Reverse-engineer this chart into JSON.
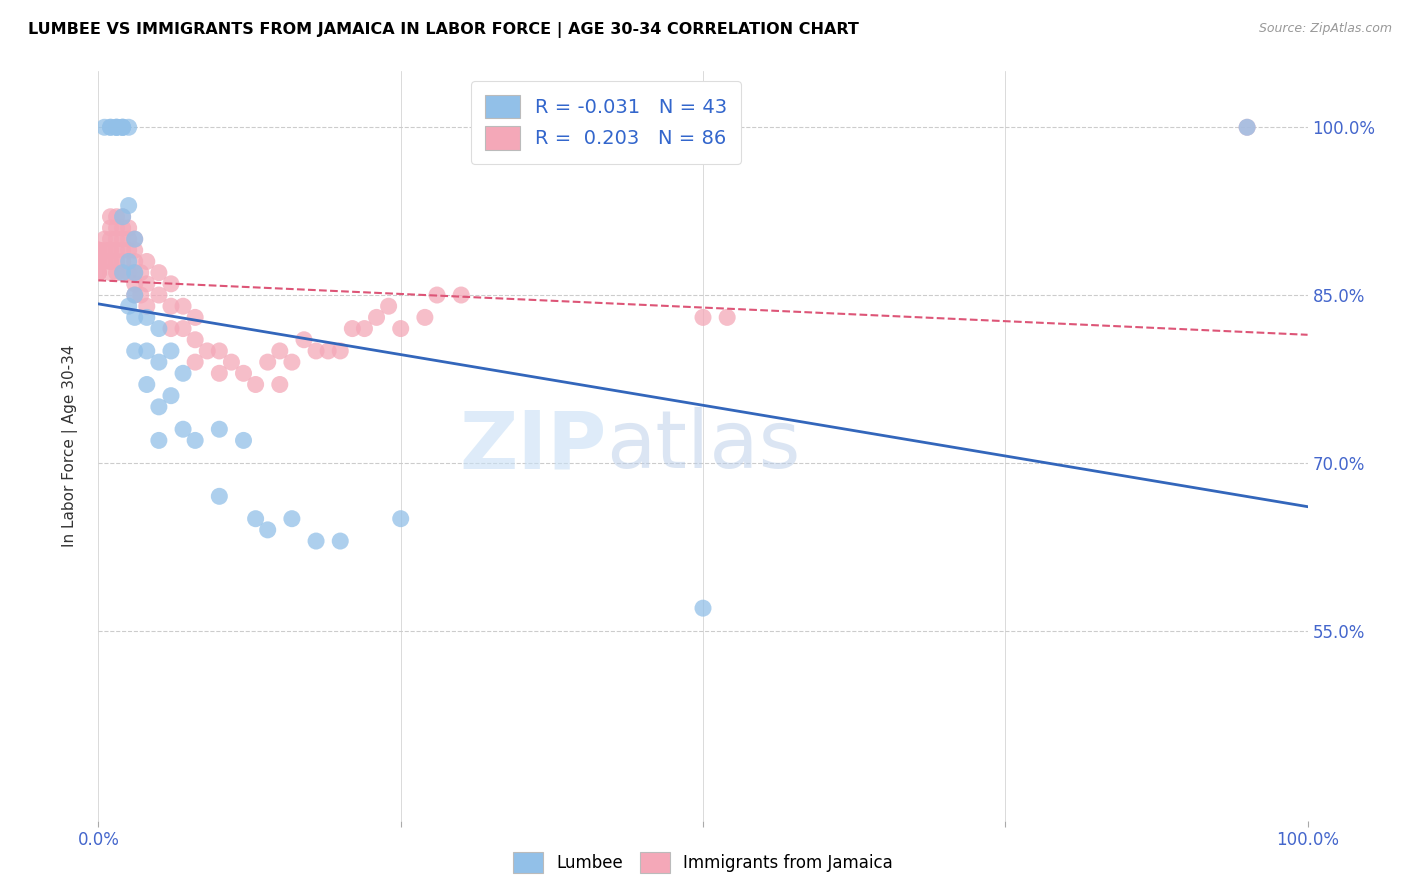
{
  "title": "LUMBEE VS IMMIGRANTS FROM JAMAICA IN LABOR FORCE | AGE 30-34 CORRELATION CHART",
  "source": "Source: ZipAtlas.com",
  "ylabel": "In Labor Force | Age 30-34",
  "ytick_labels": [
    "100.0%",
    "85.0%",
    "70.0%",
    "55.0%"
  ],
  "ytick_values": [
    1.0,
    0.85,
    0.7,
    0.55
  ],
  "xlim": [
    0.0,
    1.0
  ],
  "ylim": [
    0.38,
    1.05
  ],
  "legend_r_lumbee": "-0.031",
  "legend_n_lumbee": "43",
  "legend_r_jamaica": "0.203",
  "legend_n_jamaica": "86",
  "lumbee_color": "#92c0e8",
  "jamaica_color": "#f4a8b8",
  "lumbee_line_color": "#3366bb",
  "jamaica_line_color": "#dd5577",
  "watermark_zip": "ZIP",
  "watermark_atlas": "atlas",
  "lumbee_x": [
    0.005,
    0.01,
    0.01,
    0.015,
    0.015,
    0.015,
    0.02,
    0.02,
    0.02,
    0.02,
    0.02,
    0.025,
    0.025,
    0.025,
    0.025,
    0.03,
    0.03,
    0.03,
    0.03,
    0.03,
    0.04,
    0.04,
    0.04,
    0.05,
    0.05,
    0.05,
    0.05,
    0.06,
    0.06,
    0.07,
    0.07,
    0.08,
    0.1,
    0.1,
    0.12,
    0.13,
    0.14,
    0.16,
    0.18,
    0.2,
    0.25,
    0.5,
    0.95
  ],
  "lumbee_y": [
    1.0,
    1.0,
    1.0,
    1.0,
    1.0,
    1.0,
    1.0,
    1.0,
    1.0,
    0.92,
    0.87,
    1.0,
    0.93,
    0.88,
    0.84,
    0.9,
    0.87,
    0.85,
    0.83,
    0.8,
    0.83,
    0.8,
    0.77,
    0.82,
    0.79,
    0.75,
    0.72,
    0.8,
    0.76,
    0.78,
    0.73,
    0.72,
    0.73,
    0.67,
    0.72,
    0.65,
    0.64,
    0.65,
    0.63,
    0.63,
    0.65,
    0.57,
    1.0
  ],
  "jamaica_x": [
    0.0,
    0.0,
    0.0,
    0.0,
    0.0,
    0.0,
    0.0,
    0.0,
    0.0,
    0.0,
    0.0,
    0.0,
    0.0,
    0.005,
    0.005,
    0.005,
    0.01,
    0.01,
    0.01,
    0.01,
    0.01,
    0.01,
    0.01,
    0.01,
    0.015,
    0.015,
    0.015,
    0.015,
    0.015,
    0.015,
    0.02,
    0.02,
    0.02,
    0.02,
    0.02,
    0.02,
    0.025,
    0.025,
    0.025,
    0.025,
    0.03,
    0.03,
    0.03,
    0.03,
    0.03,
    0.03,
    0.035,
    0.035,
    0.04,
    0.04,
    0.04,
    0.05,
    0.05,
    0.06,
    0.06,
    0.06,
    0.07,
    0.07,
    0.08,
    0.08,
    0.08,
    0.09,
    0.1,
    0.1,
    0.11,
    0.12,
    0.13,
    0.14,
    0.15,
    0.15,
    0.16,
    0.17,
    0.18,
    0.19,
    0.2,
    0.21,
    0.22,
    0.23,
    0.24,
    0.25,
    0.27,
    0.28,
    0.3,
    0.5,
    0.52,
    0.95
  ],
  "jamaica_y": [
    0.89,
    0.89,
    0.89,
    0.89,
    0.89,
    0.89,
    0.88,
    0.88,
    0.88,
    0.88,
    0.87,
    0.87,
    0.87,
    0.9,
    0.89,
    0.88,
    0.92,
    0.91,
    0.9,
    0.89,
    0.89,
    0.88,
    0.88,
    0.87,
    0.92,
    0.91,
    0.9,
    0.89,
    0.88,
    0.87,
    0.92,
    0.91,
    0.9,
    0.89,
    0.88,
    0.87,
    0.91,
    0.9,
    0.89,
    0.87,
    0.9,
    0.89,
    0.88,
    0.87,
    0.86,
    0.85,
    0.87,
    0.85,
    0.88,
    0.86,
    0.84,
    0.87,
    0.85,
    0.86,
    0.84,
    0.82,
    0.84,
    0.82,
    0.83,
    0.81,
    0.79,
    0.8,
    0.8,
    0.78,
    0.79,
    0.78,
    0.77,
    0.79,
    0.8,
    0.77,
    0.79,
    0.81,
    0.8,
    0.8,
    0.8,
    0.82,
    0.82,
    0.83,
    0.84,
    0.82,
    0.83,
    0.85,
    0.85,
    0.83,
    0.83,
    1.0
  ]
}
